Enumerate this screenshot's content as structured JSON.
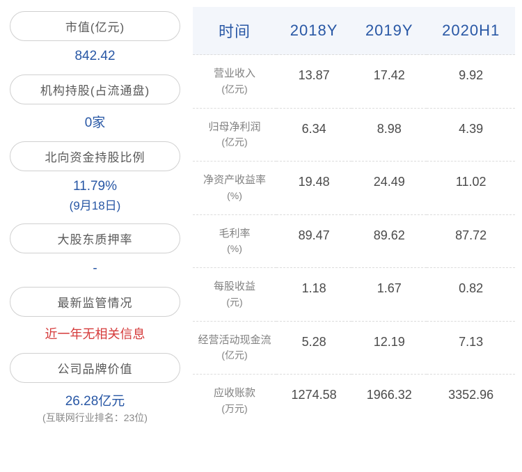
{
  "left_cards": [
    {
      "label": "市值(亿元)",
      "value": "842.42",
      "color": "#2857a5",
      "sub": null
    },
    {
      "label": "机构持股(占流通盘)",
      "value": "0家",
      "color": "#2857a5",
      "sub": null
    },
    {
      "label": "北向资金持股比例",
      "value": "11.79%",
      "color": "#2857a5",
      "sub": "(9月18日)"
    },
    {
      "label": "大股东质押率",
      "value": "-",
      "color": "#2857a5",
      "sub": null
    },
    {
      "label": "最新监管情况",
      "value": "近一年无相关信息",
      "color": "#d53a3a",
      "sub": null
    },
    {
      "label": "公司品牌价值",
      "value": "26.28亿元",
      "color": "#2857a5",
      "sub": "(互联网行业排名：23位)"
    }
  ],
  "table": {
    "headers": [
      "时间",
      "2018Y",
      "2019Y",
      "2020H1"
    ],
    "header_bg": "#f3f6fb",
    "header_color": "#2857a5",
    "rows": [
      {
        "label": "营业收入",
        "unit": "(亿元)",
        "cells": [
          "13.87",
          "17.42",
          "9.92"
        ]
      },
      {
        "label": "归母净利润",
        "unit": "(亿元)",
        "cells": [
          "6.34",
          "8.98",
          "4.39"
        ]
      },
      {
        "label": "净资产收益率",
        "unit": "(%)",
        "cells": [
          "19.48",
          "24.49",
          "11.02"
        ]
      },
      {
        "label": "毛利率",
        "unit": "(%)",
        "cells": [
          "89.47",
          "89.62",
          "87.72"
        ]
      },
      {
        "label": "每股收益",
        "unit": "(元)",
        "cells": [
          "1.18",
          "1.67",
          "0.82"
        ]
      },
      {
        "label": "经营活动现金流",
        "unit": "(亿元)",
        "cells": [
          "5.28",
          "12.19",
          "7.13"
        ]
      },
      {
        "label": "应收账款",
        "unit": "(万元)",
        "cells": [
          "1274.58",
          "1966.32",
          "3352.96"
        ]
      }
    ]
  }
}
